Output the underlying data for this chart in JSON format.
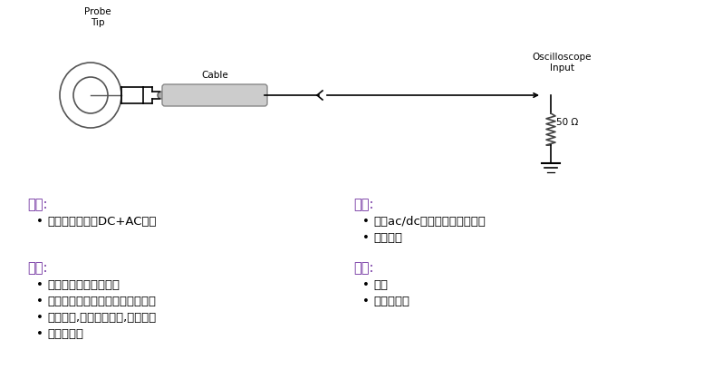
{
  "bg_color": "#ffffff",
  "purple_color": "#7030A0",
  "black": "#000000",
  "gray_cable": "#b0b0b0",
  "diagram": {
    "probe_tip_label": "Probe\nTip",
    "cable_label": "Cable",
    "oscilloscope_label": "Oscilloscope\nInput",
    "resistor_label": "50 Ω"
  },
  "sections": {
    "tezheng": {
      "header": "特征:",
      "items_plain": [
        "霍尔效应，测量"
      ],
      "items_bold": [
        "DC+AC"
      ],
      "items_suffix": [
        "电流"
      ]
    },
    "yichu": {
      "header": "益处:",
      "items": [
        "同时ac/dc测量，不用切断电路",
        "负载很小"
      ]
    },
    "yingyong": {
      "header": "应用:",
      "items": [
        "测量稳定的霹瞬变电流",
        "开关电源，放大器电路等电流测量",
        "系统功率,功率因子测量,开关机冲",
        "击电流波形"
      ]
    },
    "buzu": {
      "header": "不足:",
      "items": [
        "较大",
        "有限的带宽"
      ]
    }
  }
}
